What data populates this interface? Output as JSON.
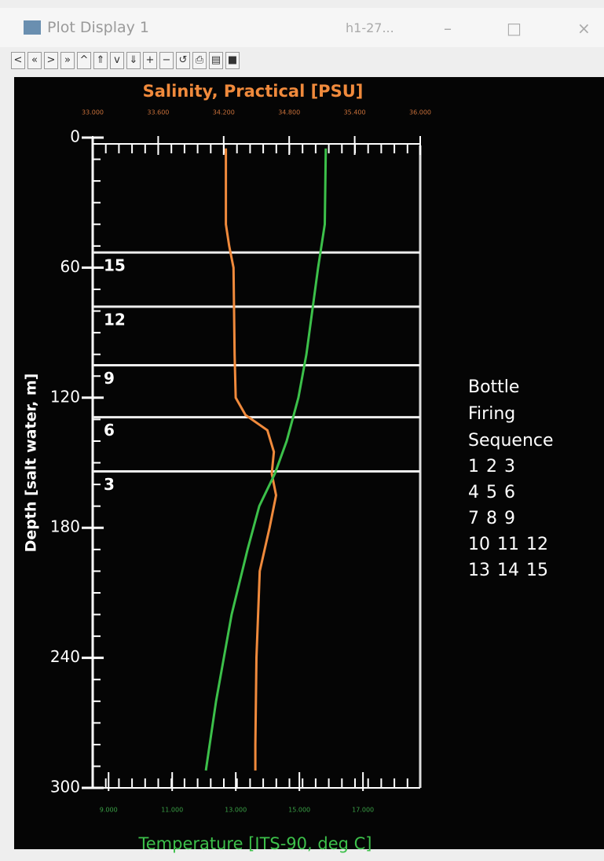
{
  "window": {
    "title": "Plot Display 1",
    "subtitle": "h1-27..."
  },
  "chart_data": {
    "type": "profile",
    "ylabel": "Depth [salt water, m]",
    "ylim": [
      0,
      300
    ],
    "yticks": [
      0,
      60,
      120,
      180,
      240,
      300
    ],
    "y_reversed": true,
    "x2lim": [
      33,
      36
    ],
    "x2ticks": [
      {
        "value": 33,
        "label": "33.000"
      },
      {
        "value": 33.6,
        "label": "33.600"
      },
      {
        "value": 34.2,
        "label": "34.200"
      },
      {
        "value": 34.8,
        "label": "34.800"
      },
      {
        "value": 35.4,
        "label": "35.400"
      },
      {
        "value": 36,
        "label": "36.000"
      }
    ],
    "xlim": [
      8.5,
      18.8
    ],
    "xticks": [
      {
        "value": 9,
        "label": "9.000"
      },
      {
        "value": 11,
        "label": "11.000"
      },
      {
        "value": 13,
        "label": "13.000"
      },
      {
        "value": 15,
        "label": "15.000"
      },
      {
        "value": 17,
        "label": "17.000"
      }
    ],
    "series": [
      {
        "name": "Salinity, Practical [PSU]",
        "color": "#f08a3c",
        "axis": "x2",
        "depth": [
          5,
          40,
          50,
          60,
          100,
          120,
          128,
          135,
          145,
          155,
          165,
          180,
          200,
          240,
          280,
          292
        ],
        "values": [
          34.22,
          34.22,
          34.25,
          34.29,
          34.3,
          34.31,
          34.4,
          34.6,
          34.66,
          34.64,
          34.68,
          34.62,
          34.53,
          34.5,
          34.49,
          34.49
        ]
      },
      {
        "name": "Temperature [ITS-90, deg C]",
        "color": "#3cc04a",
        "axis": "x",
        "depth": [
          5,
          40,
          60,
          100,
          120,
          140,
          155,
          170,
          190,
          220,
          260,
          292
        ],
        "values": [
          15.83,
          15.8,
          15.59,
          15.22,
          14.97,
          14.6,
          14.23,
          13.74,
          13.37,
          12.87,
          12.38,
          12.06
        ]
      }
    ],
    "bottles": [
      {
        "label": "15",
        "depth": 53
      },
      {
        "label": "12",
        "depth": 78
      },
      {
        "label": "9",
        "depth": 105
      },
      {
        "label": "6",
        "depth": 129
      },
      {
        "label": "3",
        "depth": 154
      }
    ],
    "legend": {
      "title": [
        "Bottle",
        "Firing",
        "Sequence"
      ],
      "rows": [
        "1 2 3",
        "4 5 6",
        "7 8 9",
        "10 11 12",
        "13 14 15"
      ]
    }
  }
}
